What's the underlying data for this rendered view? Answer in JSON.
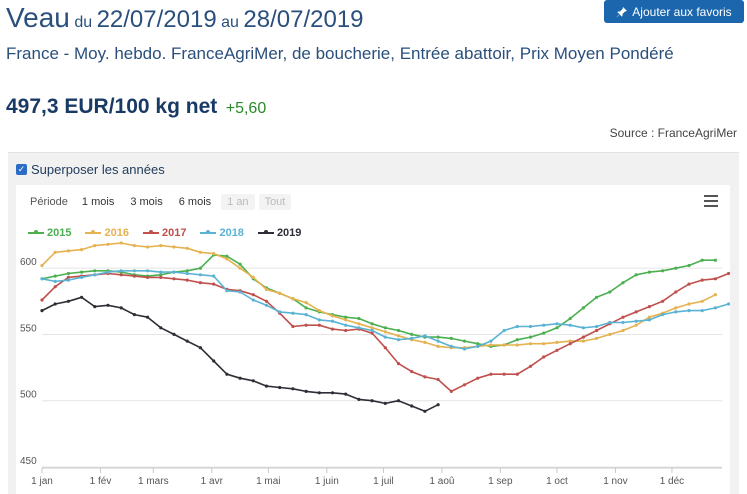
{
  "header": {
    "product": "Veau",
    "du": "du",
    "date_from": "22/07/2019",
    "au": "au",
    "date_to": "28/07/2019",
    "favorite_button": "Ajouter aux favoris",
    "subtitle": "France - Moy. hebdo. FranceAgriMer, de boucherie, Entrée abattoir, Prix Moyen Pondéré",
    "price": "497,3 EUR/100 kg net",
    "change": "+5,60",
    "source": "Source : FranceAgriMer"
  },
  "controls": {
    "overlay_label": "Superposer les années",
    "periode_label": "Période",
    "periods": [
      "1 mois",
      "3 mois",
      "6 mois",
      "1 an",
      "Tout"
    ]
  },
  "colors": {
    "2015": "#4caf50",
    "2016": "#e6b24f",
    "2017": "#c0504d",
    "2018": "#5bb3d4",
    "2019": "#2e2e36"
  },
  "chart_data": {
    "type": "line",
    "x_unit": "week",
    "xlim": [
      1,
      52.5
    ],
    "ylim": [
      450,
      622
    ],
    "y_ticks": [
      450,
      500,
      550,
      600
    ],
    "x_tick_labels": [
      "1 jan",
      "1 fév",
      "1 mars",
      "1 avr",
      "1 mai",
      "1 juin",
      "1 juil",
      "1 aoû",
      "1 sep",
      "1 oct",
      "1 nov",
      "1 déc"
    ],
    "x_tick_weeks": [
      1,
      5.43,
      9.43,
      13.86,
      18.14,
      22.57,
      26.86,
      31.29,
      35.71,
      40,
      44.43,
      48.71
    ],
    "series": [
      {
        "name": "2015",
        "values": [
          592,
          594,
          596,
          597,
          598,
          598,
          597,
          595,
          594,
          595,
          597,
          598,
          600,
          610,
          609,
          603,
          592,
          585,
          581,
          577,
          570,
          567,
          565,
          563,
          562,
          558,
          555,
          553,
          550,
          548,
          548,
          547,
          545,
          543,
          541,
          542,
          546,
          548,
          551,
          555,
          562,
          570,
          578,
          582,
          589,
          595,
          597,
          598,
          600,
          602,
          606,
          606
        ]
      },
      {
        "name": "2016",
        "values": [
          602,
          612,
          613,
          614,
          617,
          618,
          619,
          617,
          616,
          617,
          616,
          615,
          612,
          611,
          607,
          600,
          593,
          584,
          581,
          577,
          574,
          568,
          564,
          561,
          558,
          555,
          552,
          549,
          546,
          544,
          541,
          540,
          540,
          541,
          542,
          542,
          542,
          543,
          543,
          544,
          545,
          545,
          547,
          550,
          553,
          557,
          563,
          566,
          570,
          573,
          575,
          580
        ]
      },
      {
        "name": "2017",
        "values": [
          576,
          586,
          593,
          594,
          595,
          596,
          595,
          594,
          593,
          593,
          592,
          591,
          589,
          588,
          584,
          583,
          580,
          575,
          566,
          556,
          557,
          557,
          554,
          553,
          554,
          551,
          540,
          528,
          522,
          518,
          516,
          507,
          512,
          517,
          520,
          520,
          520,
          526,
          533,
          538,
          543,
          548,
          553,
          558,
          563,
          567,
          571,
          575,
          582,
          588,
          591,
          592,
          596
        ]
      },
      {
        "name": "2018",
        "values": [
          592,
          590,
          591,
          593,
          595,
          597,
          598,
          598,
          598,
          597,
          597,
          596,
          595,
          594,
          583,
          582,
          576,
          572,
          567,
          566,
          565,
          561,
          560,
          557,
          555,
          553,
          548,
          546,
          547,
          549,
          545,
          541,
          539,
          541,
          545,
          553,
          556,
          556,
          557,
          558,
          557,
          555,
          556,
          559,
          559,
          560,
          561,
          565,
          567,
          568,
          568,
          570,
          573
        ]
      },
      {
        "name": "2019",
        "values": [
          568,
          573,
          575,
          578,
          571,
          572,
          570,
          565,
          563,
          555,
          550,
          545,
          540,
          530,
          520,
          517,
          515,
          511,
          510,
          509,
          507,
          506,
          506,
          505,
          501,
          500,
          498,
          500,
          496,
          492,
          497
        ]
      }
    ]
  }
}
